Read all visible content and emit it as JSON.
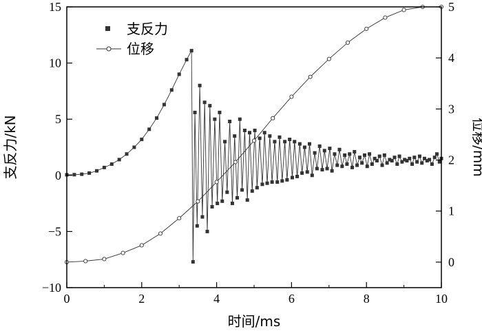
{
  "chart_data": {
    "type": "line",
    "xlabel": "时间/ms",
    "ylabel_left": "支反力/kN",
    "ylabel_right": "位移/mm",
    "xlim": [
      0,
      10
    ],
    "ylim_left": [
      -10,
      15
    ],
    "ylim_right": [
      -0.5,
      5
    ],
    "x_ticks": [
      "0",
      "2",
      "4",
      "6",
      "8",
      "10"
    ],
    "y_left_ticks": [
      "−10",
      "−5",
      "0",
      "5",
      "10",
      "15"
    ],
    "y_right_ticks": [
      "0",
      "1",
      "2",
      "3",
      "4",
      "5"
    ],
    "grid": false,
    "legend_position": "top-left",
    "colors": {
      "axis": "#000000",
      "series": "#333333",
      "marker_fill": "#333333",
      "hollow_fill": "#ffffff"
    },
    "series": [
      {
        "name": "支反力",
        "axis": "left",
        "marker": "filled-square",
        "x": [
          0.0,
          0.2,
          0.4,
          0.6,
          0.8,
          1.0,
          1.2,
          1.4,
          1.6,
          1.8,
          2.0,
          2.2,
          2.4,
          2.6,
          2.8,
          3.0,
          3.2,
          3.33,
          3.37,
          3.42,
          3.48,
          3.55,
          3.62,
          3.68,
          3.75,
          3.82,
          3.88,
          3.95,
          4.02,
          4.08,
          4.15,
          4.22,
          4.28,
          4.35,
          4.42,
          4.48,
          4.55,
          4.62,
          4.68,
          4.75,
          4.82,
          4.88,
          4.95,
          5.02,
          5.08,
          5.15,
          5.22,
          5.28,
          5.35,
          5.42,
          5.48,
          5.55,
          5.62,
          5.68,
          5.75,
          5.82,
          5.88,
          5.95,
          6.02,
          6.08,
          6.15,
          6.22,
          6.28,
          6.35,
          6.42,
          6.48,
          6.55,
          6.62,
          6.68,
          6.75,
          6.82,
          6.88,
          6.95,
          7.02,
          7.08,
          7.15,
          7.22,
          7.28,
          7.35,
          7.42,
          7.48,
          7.55,
          7.62,
          7.68,
          7.75,
          7.82,
          7.88,
          7.95,
          8.02,
          8.08,
          8.15,
          8.22,
          8.28,
          8.35,
          8.42,
          8.48,
          8.55,
          8.62,
          8.68,
          8.75,
          8.82,
          8.88,
          8.95,
          9.02,
          9.08,
          9.15,
          9.22,
          9.28,
          9.35,
          9.42,
          9.48,
          9.55,
          9.62,
          9.68,
          9.75,
          9.82,
          9.88,
          9.95,
          10.0
        ],
        "y": [
          0.05,
          0.06,
          0.1,
          0.2,
          0.4,
          0.7,
          1.0,
          1.4,
          1.9,
          2.5,
          3.2,
          4.1,
          5.1,
          6.3,
          7.6,
          9.0,
          10.3,
          11.1,
          -7.7,
          5.6,
          -4.5,
          8.0,
          -3.7,
          6.5,
          -5.0,
          6.2,
          -2.8,
          5.0,
          -2.5,
          5.6,
          -2.3,
          3.0,
          -1.5,
          4.8,
          -2.5,
          3.5,
          -2.0,
          5.0,
          -1.3,
          4.0,
          -2.2,
          3.8,
          -1.4,
          4.0,
          -1.1,
          3.3,
          -0.8,
          3.8,
          -0.7,
          3.5,
          -0.6,
          3.0,
          -0.6,
          3.4,
          -0.5,
          3.0,
          -0.4,
          3.2,
          -0.2,
          3.0,
          -0.1,
          2.8,
          0.2,
          2.5,
          0.3,
          2.8,
          0.0,
          2.0,
          0.6,
          2.6,
          0.5,
          2.2,
          0.6,
          2.4,
          0.4,
          1.9,
          0.9,
          2.3,
          0.8,
          1.8,
          1.0,
          1.9,
          0.7,
          2.1,
          0.9,
          1.6,
          1.1,
          1.8,
          0.8,
          1.9,
          1.0,
          1.5,
          1.3,
          1.7,
          0.9,
          1.8,
          1.1,
          1.4,
          1.3,
          1.6,
          1.0,
          1.7,
          1.2,
          1.4,
          1.3,
          1.5,
          1.0,
          1.6,
          1.2,
          1.7,
          1.1,
          1.5,
          1.3,
          1.4,
          1.0,
          1.6,
          1.9,
          1.2,
          1.5
        ]
      },
      {
        "name": "位移",
        "axis": "right",
        "marker": "hollow-circle",
        "x": [
          0,
          0.5,
          1.0,
          1.5,
          2.0,
          2.5,
          3.0,
          3.5,
          4.0,
          4.5,
          5.0,
          5.5,
          6.0,
          6.5,
          7.0,
          7.5,
          8.0,
          8.5,
          9.0,
          9.5,
          10.0
        ],
        "y": [
          0.0,
          0.02,
          0.06,
          0.18,
          0.33,
          0.56,
          0.86,
          1.19,
          1.57,
          1.96,
          2.38,
          2.82,
          3.24,
          3.63,
          3.98,
          4.3,
          4.57,
          4.79,
          4.94,
          5.0,
          5.0
        ]
      }
    ]
  }
}
